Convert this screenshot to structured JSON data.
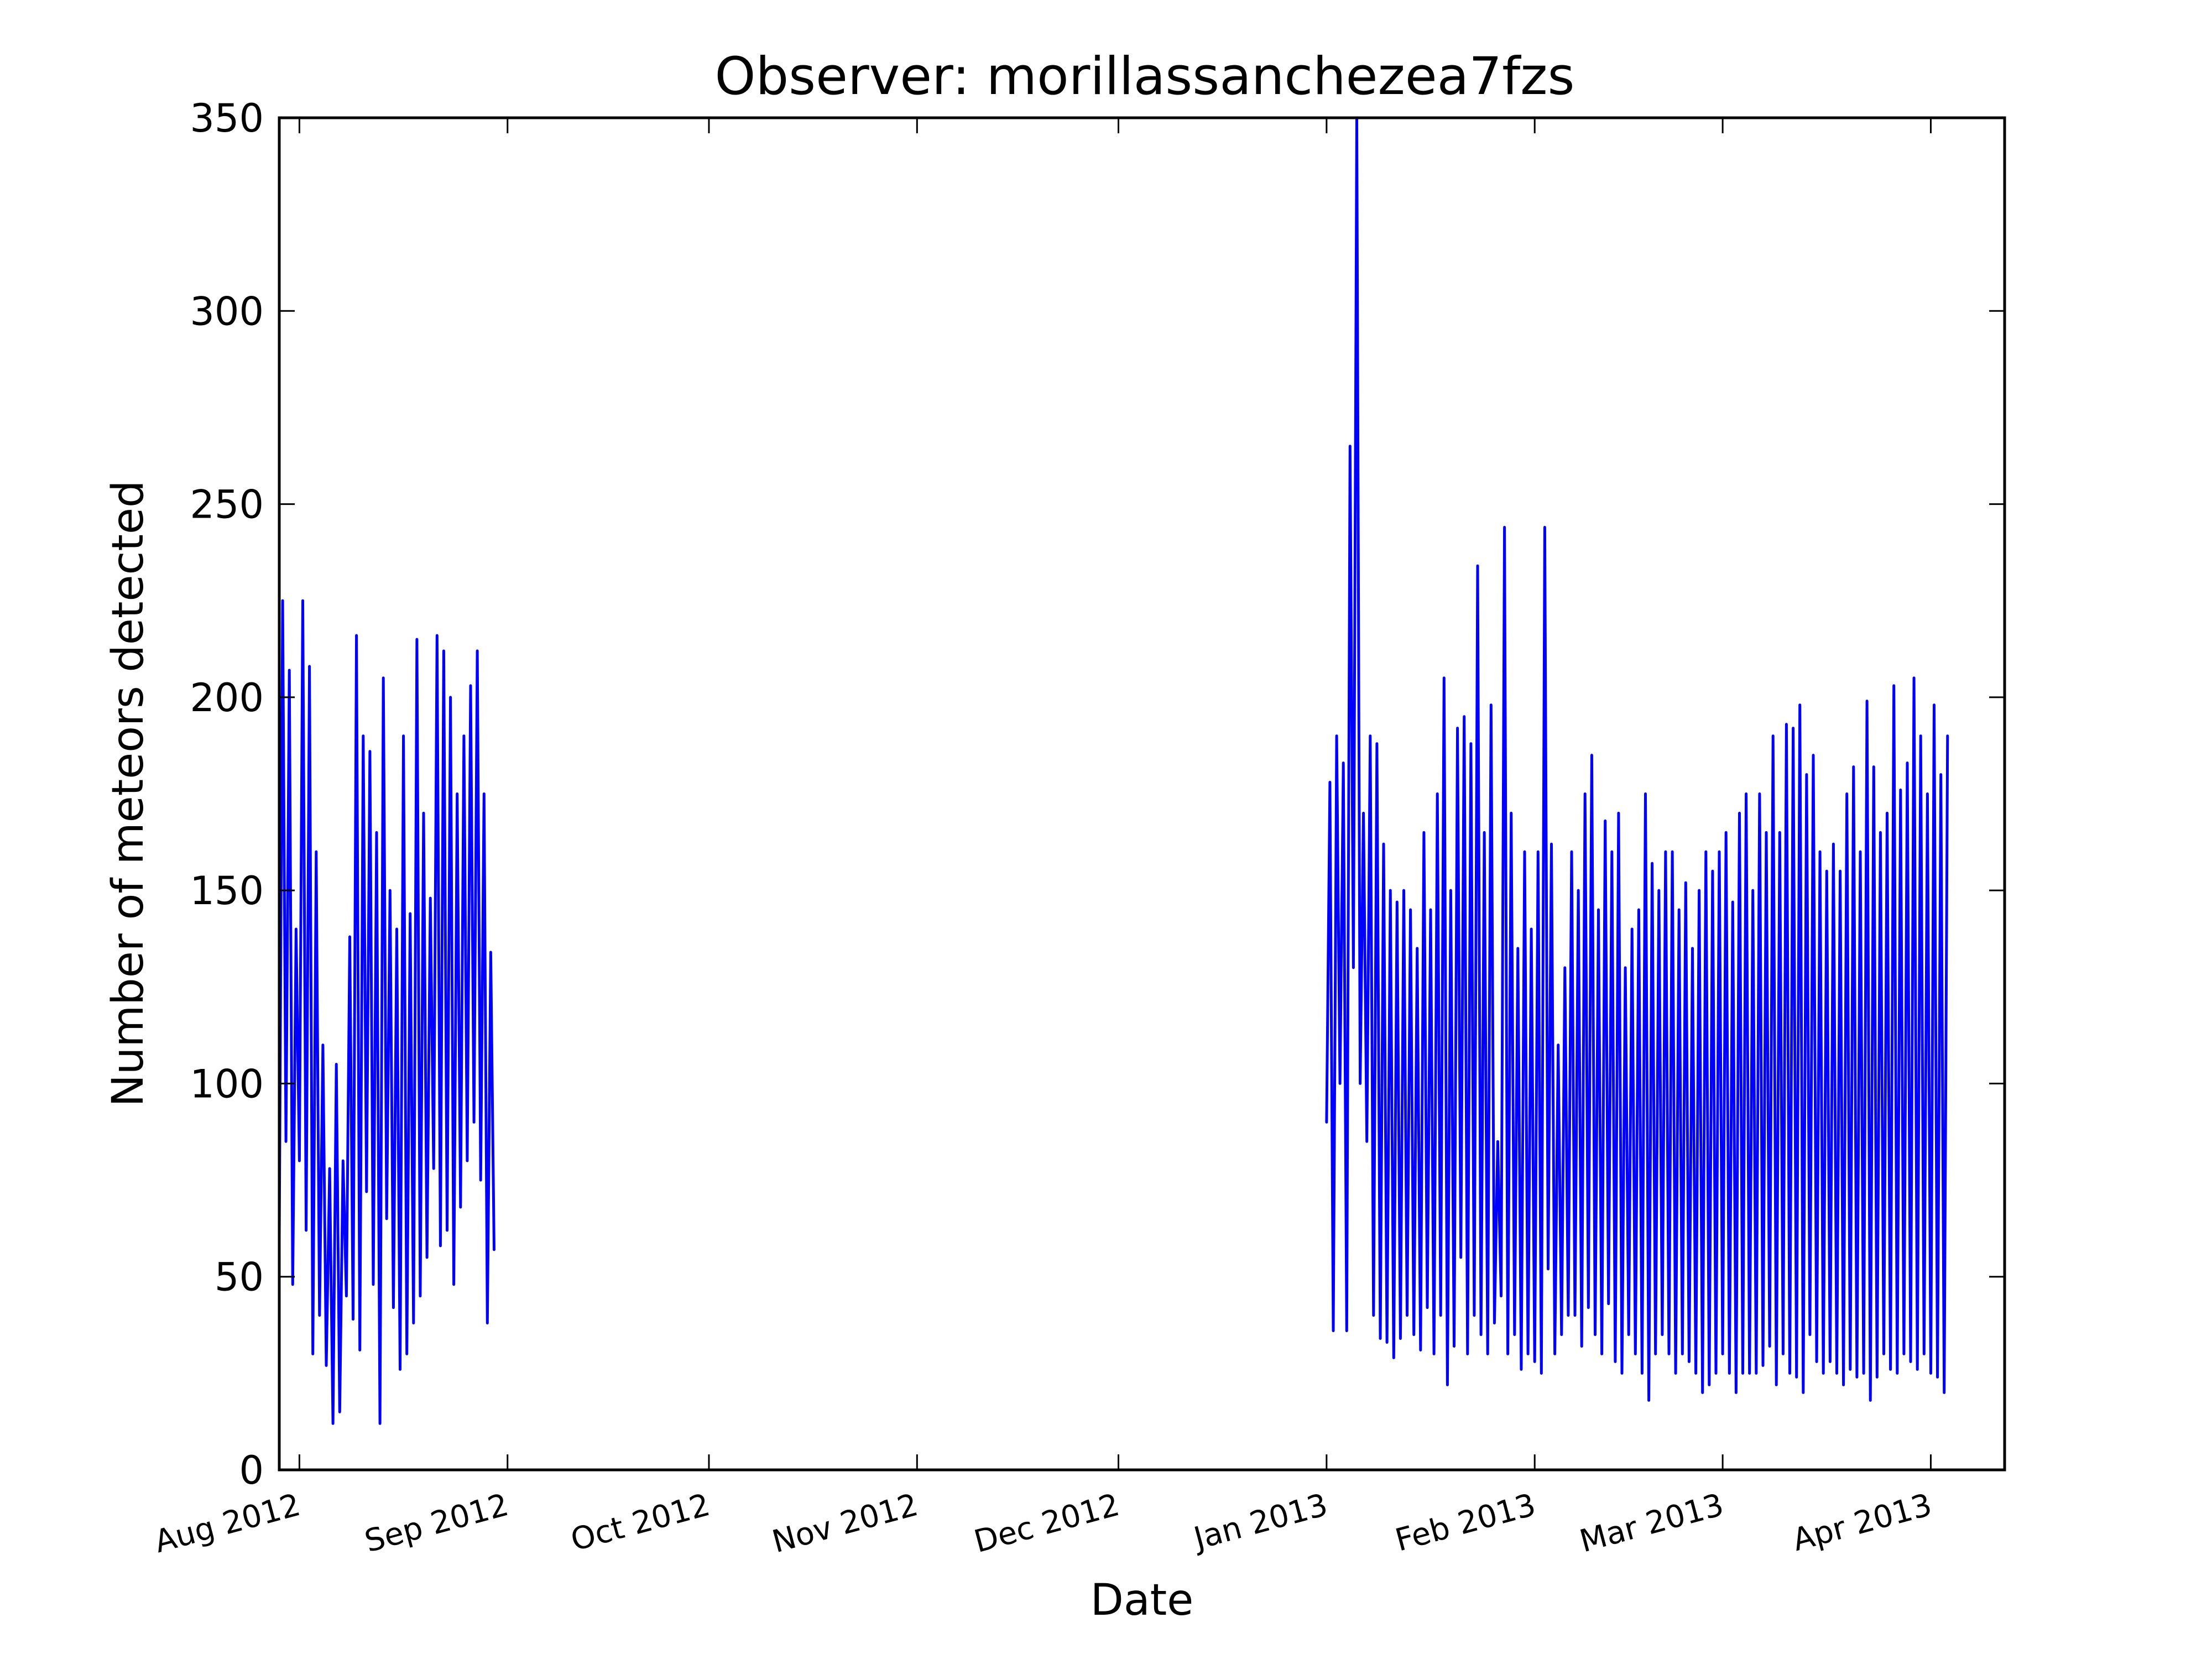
{
  "chart_data": {
    "type": "line",
    "title": "Observer: morillassanchezea7fzs",
    "xlabel": "Date",
    "ylabel": "Number of meteors detected",
    "xlim": [
      "2012-07-29",
      "2013-04-12"
    ],
    "ylim": [
      0,
      350
    ],
    "grid": false,
    "legend": "none",
    "colors": {
      "series": "#0000ff",
      "axes": "#000000",
      "background": "#ffffff"
    },
    "x_ticks": [
      {
        "date": "2012-08-01",
        "label": "Aug 2012"
      },
      {
        "date": "2012-09-01",
        "label": "Sep 2012"
      },
      {
        "date": "2012-10-01",
        "label": "Oct 2012"
      },
      {
        "date": "2012-11-01",
        "label": "Nov 2012"
      },
      {
        "date": "2012-12-01",
        "label": "Dec 2012"
      },
      {
        "date": "2013-01-01",
        "label": "Jan 2013"
      },
      {
        "date": "2013-02-01",
        "label": "Feb 2013"
      },
      {
        "date": "2013-03-01",
        "label": "Mar 2013"
      },
      {
        "date": "2013-04-01",
        "label": "Apr 2013"
      }
    ],
    "y_ticks": [
      {
        "value": 0,
        "label": "0"
      },
      {
        "value": 50,
        "label": "50"
      },
      {
        "value": 100,
        "label": "100"
      },
      {
        "value": 150,
        "label": "150"
      },
      {
        "value": 200,
        "label": "200"
      },
      {
        "value": 250,
        "label": "250"
      },
      {
        "value": 300,
        "label": "300"
      },
      {
        "value": 350,
        "label": "350"
      }
    ],
    "series": [
      {
        "segments": [
          {
            "start": "2012-07-29T00:00",
            "step_hours": 12,
            "values": [
              60,
              225,
              85,
              207,
              48,
              140,
              80,
              225,
              62,
              208,
              30,
              160,
              40,
              110,
              27,
              78,
              12,
              105,
              15,
              80,
              45,
              138,
              39,
              216,
              31,
              190,
              72,
              186,
              48,
              165,
              12,
              205,
              65,
              150,
              42,
              140,
              26,
              190,
              30,
              144,
              38,
              215,
              45,
              170,
              55,
              148,
              78,
              216,
              58,
              212,
              62,
              200,
              48,
              175,
              68,
              190,
              80,
              203,
              90,
              212,
              75,
              175,
              38,
              134,
              57
            ]
          },
          {
            "start": "2013-01-01T00:00",
            "step_hours": 12,
            "values": [
              90,
              178,
              36,
              190,
              100,
              183,
              36,
              265,
              130,
              350,
              100,
              170,
              85,
              190,
              40,
              188,
              34,
              162,
              33,
              150,
              29,
              147,
              34,
              150,
              40,
              145,
              35,
              135,
              31,
              165,
              42,
              145,
              30,
              175,
              40,
              205,
              22,
              150,
              32,
              192,
              55,
              195,
              30,
              188,
              40,
              234,
              35,
              165,
              30,
              198,
              38,
              85,
              45,
              244,
              30,
              170,
              35,
              135,
              26,
              160,
              30,
              140,
              28,
              160,
              25,
              244,
              52,
              162,
              30,
              110,
              35,
              130,
              40,
              160,
              40,
              150,
              32,
              175,
              42,
              185,
              35,
              145,
              30,
              168,
              43,
              160,
              28,
              170,
              25,
              130,
              35,
              140,
              30,
              145,
              25,
              175,
              18,
              157,
              30,
              150,
              35,
              160,
              30,
              160,
              25,
              145,
              30,
              152,
              28,
              135,
              25,
              150,
              20,
              160,
              22,
              155,
              25,
              160,
              30,
              165,
              25,
              147,
              20,
              170,
              25,
              175,
              25,
              150,
              25,
              175,
              27,
              165,
              32,
              190,
              22,
              165,
              30,
              193,
              25,
              192,
              24,
              198,
              20,
              180,
              35,
              185,
              28,
              160,
              25,
              155,
              28,
              162,
              25,
              155,
              22,
              175,
              26,
              182,
              24,
              160,
              25,
              199,
              18,
              182,
              24,
              165,
              30,
              170,
              26,
              203,
              25,
              176,
              30,
              183,
              28,
              205,
              26,
              190,
              30,
              175,
              25,
              198,
              24,
              180,
              20,
              190
            ]
          }
        ]
      }
    ]
  }
}
